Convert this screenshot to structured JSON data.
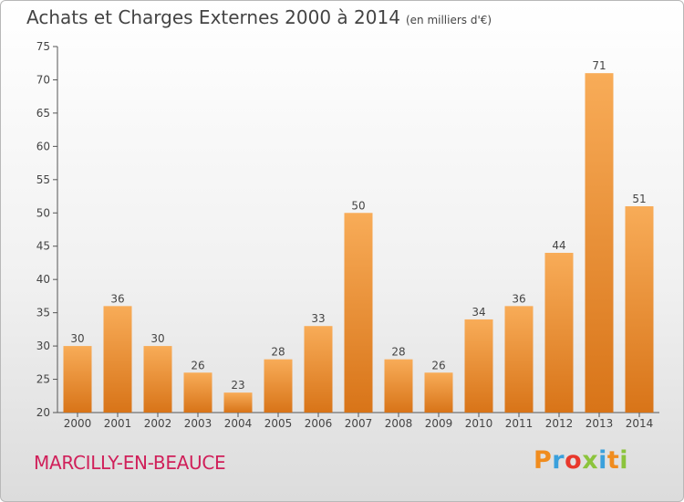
{
  "header": {
    "title": "Achats et Charges Externes 2000 à 2014",
    "unit": "(en milliers d'€)"
  },
  "commune": "MARCILLY-EN-BEAUCE",
  "logo": {
    "letters": [
      "P",
      "r",
      "o",
      "x",
      "i",
      "t",
      "i"
    ],
    "colors": [
      "#f08c1e",
      "#3aa0dc",
      "#e8382c",
      "#8cc43c",
      "#3aa0dc",
      "#f08c1e",
      "#8cc43c"
    ]
  },
  "colors": {
    "bar_light": "#f8ac58",
    "bar_dark": "#d87418",
    "text": "#444444",
    "commune": "#d0205a"
  },
  "chart_data": {
    "type": "bar",
    "title": "Achats et Charges Externes 2000 à 2014",
    "unit": "(en milliers d'€)",
    "categories": [
      "2000",
      "2001",
      "2002",
      "2003",
      "2004",
      "2005",
      "2006",
      "2007",
      "2008",
      "2009",
      "2010",
      "2011",
      "2012",
      "2013",
      "2014"
    ],
    "values": [
      30,
      36,
      30,
      26,
      23,
      28,
      33,
      50,
      28,
      26,
      34,
      36,
      44,
      71,
      51
    ],
    "ylim": [
      20,
      75
    ],
    "yticks": [
      20,
      25,
      30,
      35,
      40,
      45,
      50,
      55,
      60,
      65,
      70,
      75
    ],
    "grid": false,
    "data_labels": true
  }
}
